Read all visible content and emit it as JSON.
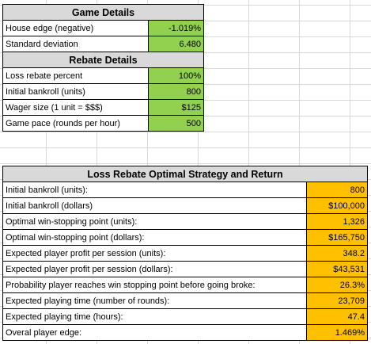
{
  "game_details": {
    "title": "Game Details",
    "rows": [
      {
        "label": "House edge (negative)",
        "value": "-1.019%"
      },
      {
        "label": "Standard deviation",
        "value": "6.480"
      }
    ]
  },
  "rebate_details": {
    "title": "Rebate Details",
    "rows": [
      {
        "label": "Loss rebate percent",
        "value": "100%"
      },
      {
        "label": "Initial bankroll (units)",
        "value": "800"
      },
      {
        "label": "Wager size (1 unit = $$$)",
        "value": "$125"
      },
      {
        "label": "Game pace (rounds per hour)",
        "value": "500"
      }
    ]
  },
  "strategy": {
    "title": "Loss Rebate Optimal Strategy and Return",
    "rows": [
      {
        "label": "Initial bankroll (units):",
        "value": "800"
      },
      {
        "label": "Initial bankroll (dollars)",
        "value": "$100,000"
      },
      {
        "label": "Optimal win-stopping point (units):",
        "value": "1,326"
      },
      {
        "label": "Optimal win-stopping point (dollars):",
        "value": "$165,750"
      },
      {
        "label": "Expected player profit per session (units):",
        "value": "348.2"
      },
      {
        "label": "Expected player profit per session (dollars):",
        "value": "$43,531"
      },
      {
        "label": "Probability player reaches win stopping point before going broke:",
        "value": "26.3%"
      },
      {
        "label": "Expected playing time (number of rounds):",
        "value": "23,709"
      },
      {
        "label": "Expected playing time (hours):",
        "value": "47.4"
      },
      {
        "label": "Overal player edge:",
        "value": "1.469%"
      }
    ]
  },
  "colors": {
    "header_fill": "#d9d9d9",
    "input_fill": "#92d050",
    "output_fill": "#ffc000"
  }
}
